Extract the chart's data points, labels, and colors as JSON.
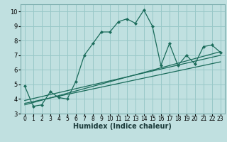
{
  "xlabel": "Humidex (Indice chaleur)",
  "bg_color": "#c0e0e0",
  "grid_color": "#98c8c8",
  "line_color": "#1a6b5a",
  "xlim": [
    -0.5,
    23.5
  ],
  "ylim": [
    3,
    10.5
  ],
  "xticks": [
    0,
    1,
    2,
    3,
    4,
    5,
    6,
    7,
    8,
    9,
    10,
    11,
    12,
    13,
    14,
    15,
    16,
    17,
    18,
    19,
    20,
    21,
    22,
    23
  ],
  "yticks": [
    3,
    4,
    5,
    6,
    7,
    8,
    9,
    10
  ],
  "main_line_x": [
    0,
    1,
    2,
    3,
    4,
    5,
    6,
    7,
    8,
    9,
    10,
    11,
    12,
    13,
    14,
    15,
    16,
    17,
    18,
    19,
    20,
    21,
    22,
    23
  ],
  "main_line_y": [
    4.9,
    3.5,
    3.6,
    4.5,
    4.1,
    4.0,
    5.2,
    7.0,
    7.8,
    8.6,
    8.6,
    9.3,
    9.5,
    9.2,
    10.1,
    9.0,
    6.3,
    7.8,
    6.3,
    7.0,
    6.4,
    7.6,
    7.7,
    7.2
  ],
  "reg_lines": [
    {
      "x": [
        0,
        23
      ],
      "y": [
        3.6,
        7.25
      ]
    },
    {
      "x": [
        0,
        23
      ],
      "y": [
        3.7,
        6.55
      ]
    },
    {
      "x": [
        0,
        23
      ],
      "y": [
        3.9,
        7.0
      ]
    }
  ],
  "xlabel_fontsize": 7,
  "tick_fontsize": 5.5
}
